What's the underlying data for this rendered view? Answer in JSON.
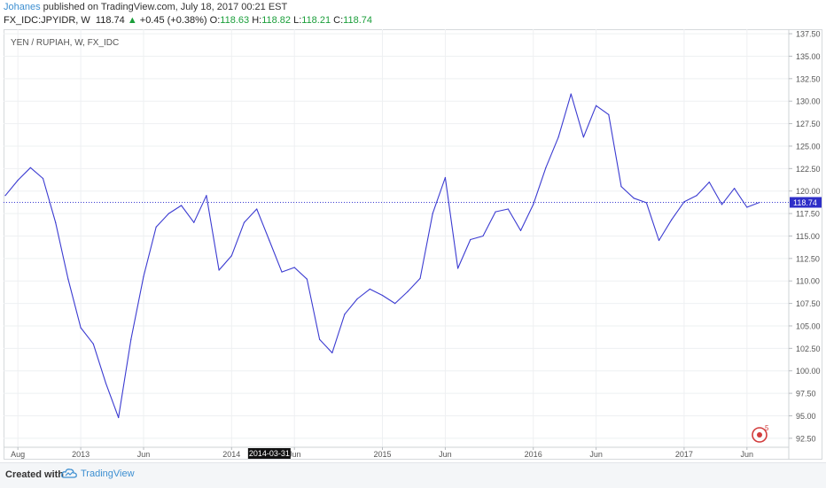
{
  "header": {
    "author": "Johanes",
    "published_text": "published on TradingView.com, July 18, 2017 00:21 EST",
    "symbol": "FX_IDC:JPYIDR, W",
    "last": "118.74",
    "change": "+0.45 (+0.38%)",
    "o_label": "O:",
    "o_value": "118.63",
    "h_label": "H:",
    "h_value": "118.82",
    "l_label": "L:",
    "l_value": "118.21",
    "c_label": "C:",
    "c_value": "118.74"
  },
  "chart_data": {
    "type": "line",
    "title": "YEN / RUPIAH, W, FX_IDC",
    "line_color": "#3b3bd1",
    "ylim": [
      91.5,
      138.0
    ],
    "yticks": [
      "137.50",
      "135.00",
      "132.50",
      "130.00",
      "127.50",
      "125.00",
      "122.50",
      "120.00",
      "117.50",
      "115.00",
      "112.50",
      "110.00",
      "107.50",
      "105.00",
      "102.50",
      "100.00",
      "97.50",
      "95.00",
      "92.50"
    ],
    "xticks": [
      "Aug",
      "2013",
      "Jun",
      "2014",
      "Jun",
      "2015",
      "Jun",
      "2016",
      "Jun",
      "2017",
      "Jun"
    ],
    "current_price": "118.74",
    "crosshair_date": "2014-03-31",
    "series": [
      {
        "x": [
          "2012-07",
          "2012-08",
          "2012-09",
          "2012-10",
          "2012-11",
          "2012-12",
          "2013-01",
          "2013-02",
          "2013-03",
          "2013-04",
          "2013-05",
          "2013-06",
          "2013-07",
          "2013-08",
          "2013-09",
          "2013-10",
          "2013-11",
          "2013-12",
          "2014-01",
          "2014-02",
          "2014-03",
          "2014-04",
          "2014-05",
          "2014-06",
          "2014-07",
          "2014-08",
          "2014-09",
          "2014-10",
          "2014-11",
          "2014-12",
          "2015-01",
          "2015-02",
          "2015-03",
          "2015-04",
          "2015-05",
          "2015-06",
          "2015-07",
          "2015-08",
          "2015-09",
          "2015-10",
          "2015-11",
          "2015-12",
          "2016-01",
          "2016-02",
          "2016-03",
          "2016-04",
          "2016-05",
          "2016-06",
          "2016-07",
          "2016-08",
          "2016-09",
          "2016-10",
          "2016-11",
          "2016-12",
          "2017-01",
          "2017-02",
          "2017-03",
          "2017-04",
          "2017-05",
          "2017-06",
          "2017-07"
        ],
        "values": [
          119.5,
          121.2,
          122.6,
          121.4,
          116.5,
          110.2,
          104.8,
          103.0,
          98.6,
          94.8,
          103.5,
          110.5,
          116.0,
          117.5,
          118.4,
          116.5,
          119.5,
          111.2,
          112.8,
          116.5,
          118.0,
          114.5,
          111.0,
          111.5,
          110.2,
          103.5,
          102.0,
          106.3,
          108.0,
          109.1,
          108.4,
          107.5,
          108.8,
          110.3,
          117.5,
          121.5,
          111.4,
          114.6,
          115.0,
          117.7,
          118.0,
          115.6,
          118.5,
          122.6,
          126.0,
          130.8,
          126.0,
          129.5,
          128.5,
          120.5,
          119.2,
          118.7,
          114.5,
          116.8,
          118.8,
          119.5,
          121.0,
          118.5,
          120.3,
          118.2,
          118.74
        ]
      }
    ]
  }
}
